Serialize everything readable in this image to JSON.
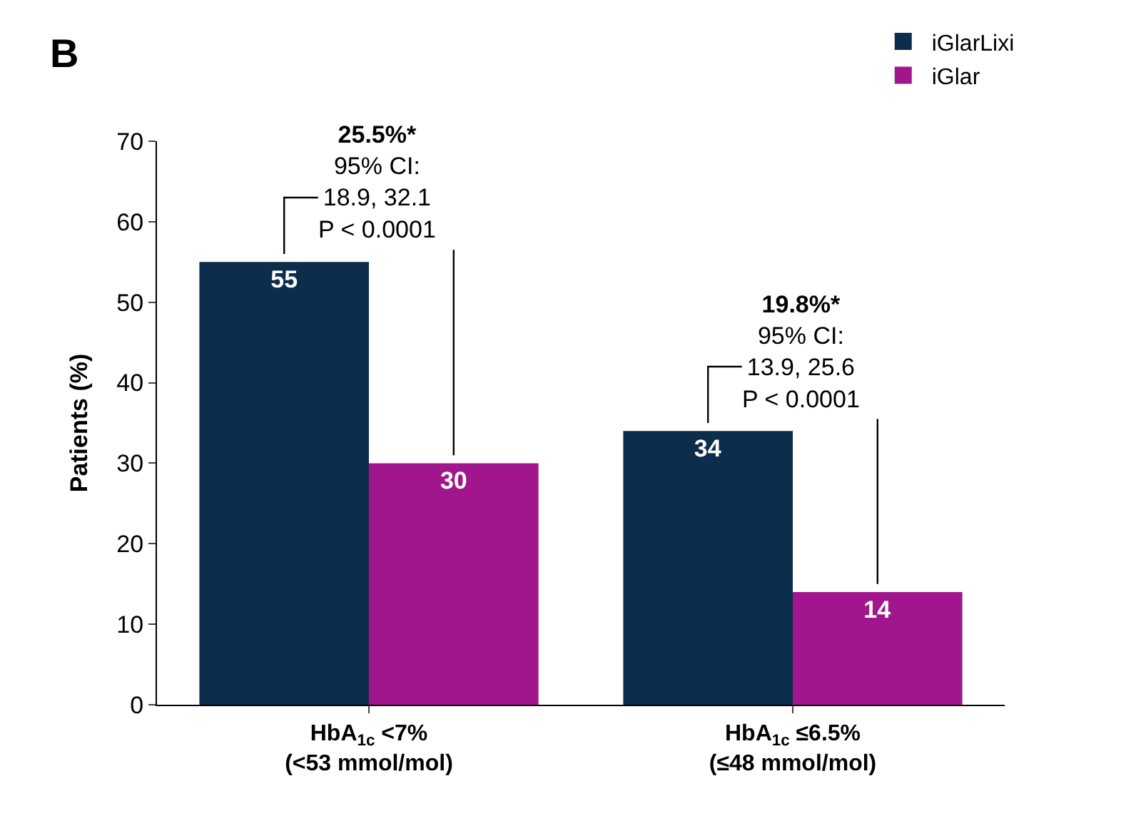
{
  "chart_data": {
    "type": "bar",
    "categories": [
      "HbA$_{1c}$ <7%\n(<53 mmol/mol)",
      "HbA$_{1c}$ ≤6.5%\n(≤48 mmol/mol)"
    ],
    "series": [
      {
        "name": "iGlarLixi",
        "color": "#0d2d4c",
        "values": [
          55,
          34
        ]
      },
      {
        "name": "iGlar",
        "color": "#a1168c",
        "values": [
          30,
          14
        ]
      }
    ],
    "ylabel": "Patients (%)",
    "ylim": [
      0,
      70
    ],
    "yticks": [
      0,
      10,
      20,
      30,
      40,
      50,
      60,
      70
    ],
    "data_labels": true,
    "legend": "top right",
    "annotations": [
      "B",
      "25.5%*\n95% CI:\n18.9, 32.1\nP < 0.0001",
      "19.8%*\n95% CI:\n13.9, 25.6\nP < 0.0001"
    ]
  }
}
